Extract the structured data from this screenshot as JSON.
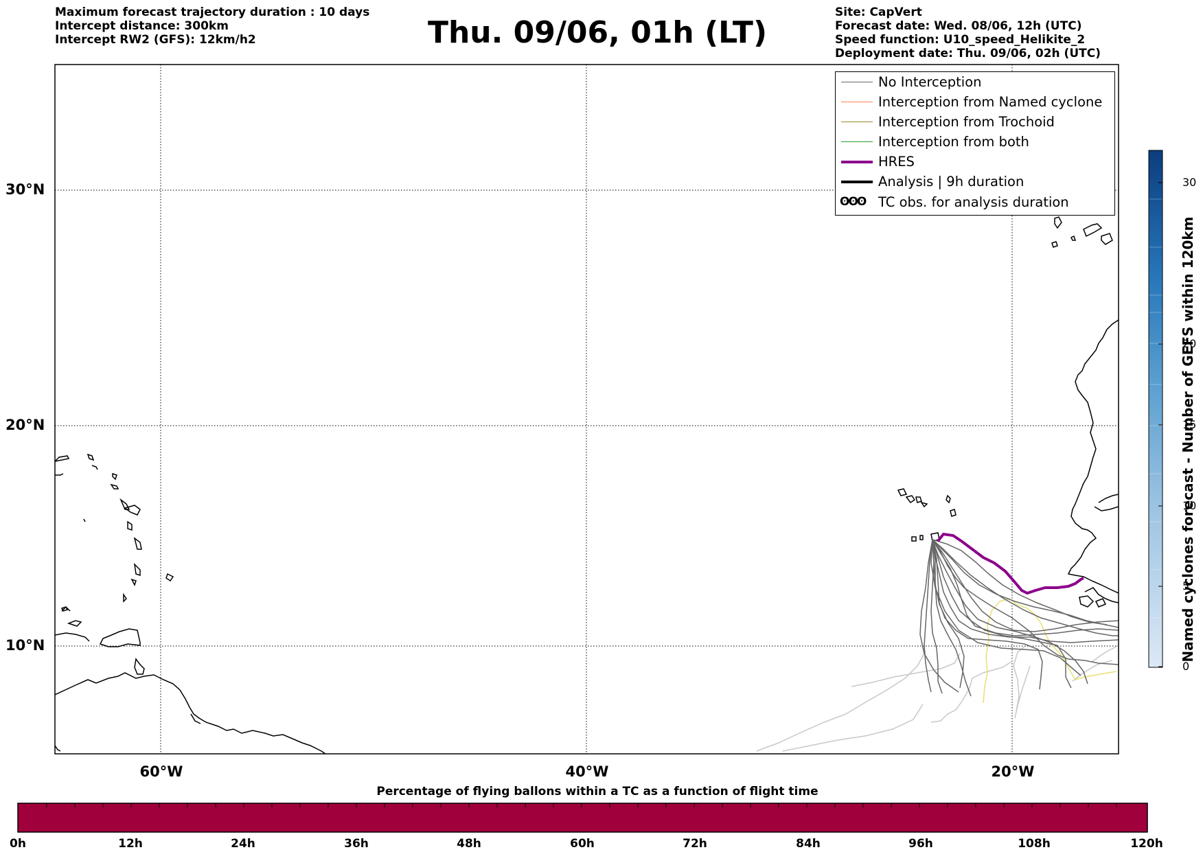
{
  "header": {
    "left_lines": [
      "Maximum forecast trajectory duration : 10 days",
      "Intercept distance: 300km",
      "Intercept RW2 (GFS):  12km/h2"
    ],
    "title": "Thu. 09/06, 01h (LT)",
    "right_lines": [
      "Site: CapVert",
      "Forecast date: Wed. 08/06, 12h (UTC)",
      "Speed function: U10_speed_Helikite_2",
      "Deployment date: Thu. 09/06, 02h (UTC)"
    ]
  },
  "map": {
    "lat_labels": [
      "30°N",
      "20°N",
      "10°N"
    ],
    "lon_labels": [
      "60°W",
      "40°W",
      "20°W"
    ],
    "colors": {
      "no_interception": "#666666",
      "named_cyclone": "#ff7f50",
      "trochoid": "#9a8a2a",
      "both": "#2ca02c",
      "hres": "#8b008b",
      "analysis": "#000000",
      "faded_tracks": "#c8c8c8",
      "yellow_contour": "#e8e070"
    }
  },
  "legend": {
    "items": [
      {
        "label": "No Interception",
        "color": "#666666",
        "style": "thin"
      },
      {
        "label": "Interception from Named cyclone",
        "color": "#ff7f50",
        "style": "thin"
      },
      {
        "label": "Interception from Trochoid",
        "color": "#9a8a2a",
        "style": "thin"
      },
      {
        "label": "Interception from both",
        "color": "#2ca02c",
        "style": "thin"
      },
      {
        "label": "HRES",
        "color": "#8b008b",
        "style": "thick"
      },
      {
        "label": "Analysis | 9h duration",
        "color": "#000000",
        "style": "thick"
      },
      {
        "label": "TC obs. for analysis duration",
        "color": "#000000",
        "style": "symbol",
        "symbol": "ʘʘʘ"
      }
    ]
  },
  "colorbar_vertical": {
    "title": "Named cyclones forecast - Number of GEFS within 120km",
    "ticks": [
      "0",
      "5",
      "10",
      "15",
      "20",
      "30"
    ],
    "min": 0,
    "max": 32
  },
  "colorbar_horizontal": {
    "title": "Percentage of flying ballons within a TC as a function of flight time",
    "color": "#a0003c",
    "labels": [
      "0h",
      "12h",
      "24h",
      "36h",
      "48h",
      "60h",
      "72h",
      "84h",
      "96h",
      "108h",
      "120h"
    ]
  }
}
